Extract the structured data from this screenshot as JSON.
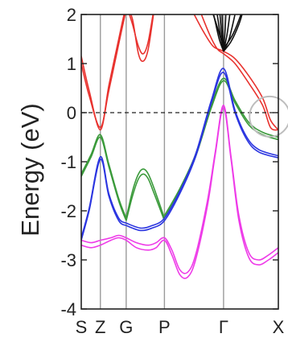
{
  "chart_data": {
    "type": "line",
    "title": "",
    "ylabel": "Energy (eV)",
    "xlabel": "",
    "ylim": [
      -4,
      2
    ],
    "x_range": [
      0,
      100
    ],
    "yticks": [
      "2",
      "1",
      "0",
      "-1",
      "-2",
      "-3",
      "-4"
    ],
    "ytick_values": [
      2,
      1,
      0,
      -1,
      -2,
      -3,
      -4
    ],
    "kpoints": [
      {
        "label": "S",
        "x": 0
      },
      {
        "label": "Z",
        "x": 9.7
      },
      {
        "label": "G",
        "x": 22.8
      },
      {
        "label": "P",
        "x": 42.2
      },
      {
        "label": "Γ",
        "x": 72.2
      },
      {
        "label": "X",
        "x": 100
      }
    ],
    "fermi_level": 0,
    "annotation": {
      "type": "circle",
      "x": 95.6,
      "y": -0.08,
      "note": "gray highlight circle"
    },
    "colors": {
      "red": "#e8322e",
      "green": "#3a9a3a",
      "blue": "#2b35e0",
      "magenta": "#ee3be8",
      "black": "#111111",
      "axis": "#222222",
      "kline": "#9a9a9a"
    },
    "series": [
      {
        "color": "red",
        "points": [
          [
            0,
            1.15
          ],
          [
            4,
            0.45
          ],
          [
            9.7,
            -0.35
          ],
          [
            14,
            0.55
          ],
          [
            19,
            1.5
          ],
          [
            22.8,
            2.2
          ]
        ]
      },
      {
        "color": "red",
        "points": [
          [
            0,
            1.0
          ],
          [
            4,
            0.35
          ],
          [
            9.7,
            -0.3
          ],
          [
            14,
            0.45
          ],
          [
            19,
            1.4
          ],
          [
            22.8,
            2.1
          ]
        ]
      },
      {
        "color": "red",
        "points": [
          [
            22.8,
            2.2
          ],
          [
            26,
            1.9
          ],
          [
            29,
            1.2
          ],
          [
            31.5,
            1.05
          ],
          [
            34,
            1.3
          ],
          [
            37,
            2.1
          ]
        ]
      },
      {
        "color": "red",
        "points": [
          [
            22.8,
            2.2
          ],
          [
            26,
            1.8
          ],
          [
            29,
            1.35
          ],
          [
            31.5,
            1.2
          ],
          [
            34,
            1.45
          ],
          [
            37,
            2.15
          ]
        ]
      },
      {
        "color": "red",
        "points": [
          [
            56,
            2.1
          ],
          [
            62,
            1.65
          ],
          [
            67,
            1.35
          ],
          [
            72.2,
            1.25
          ],
          [
            78,
            1.1
          ],
          [
            85,
            0.75
          ],
          [
            92,
            0.3
          ],
          [
            96,
            -0.15
          ],
          [
            100,
            -0.35
          ]
        ]
      },
      {
        "color": "red",
        "points": [
          [
            60,
            2.1
          ],
          [
            65,
            1.6
          ],
          [
            69,
            1.3
          ],
          [
            72.2,
            1.2
          ],
          [
            78,
            1.0
          ],
          [
            85,
            0.6
          ],
          [
            92,
            0.15
          ],
          [
            96,
            -0.3
          ],
          [
            100,
            -0.35
          ]
        ]
      },
      {
        "color": "green",
        "points": [
          [
            0,
            -1.3
          ],
          [
            5,
            -0.9
          ],
          [
            9.7,
            -0.5
          ],
          [
            14,
            -1.1
          ],
          [
            19,
            -1.8
          ],
          [
            22.8,
            -2.2
          ]
        ]
      },
      {
        "color": "green",
        "points": [
          [
            0,
            -1.25
          ],
          [
            5,
            -0.85
          ],
          [
            9.7,
            -0.45
          ],
          [
            14,
            -1.05
          ],
          [
            19,
            -1.75
          ],
          [
            22.8,
            -2.15
          ]
        ]
      },
      {
        "color": "green",
        "points": [
          [
            22.8,
            -2.2
          ],
          [
            26,
            -1.7
          ],
          [
            29,
            -1.35
          ],
          [
            31.5,
            -1.25
          ],
          [
            34,
            -1.35
          ],
          [
            37,
            -1.65
          ],
          [
            42.2,
            -2.2
          ]
        ]
      },
      {
        "color": "green",
        "points": [
          [
            22.8,
            -2.15
          ],
          [
            26,
            -1.6
          ],
          [
            29,
            -1.25
          ],
          [
            31.5,
            -1.15
          ],
          [
            34,
            -1.25
          ],
          [
            37,
            -1.55
          ],
          [
            42.2,
            -2.15
          ]
        ]
      },
      {
        "color": "green",
        "points": [
          [
            42.2,
            -2.15
          ],
          [
            50,
            -1.6
          ],
          [
            58,
            -0.9
          ],
          [
            66,
            0.1
          ],
          [
            72.2,
            0.65
          ],
          [
            78,
            0.2
          ],
          [
            85,
            -0.25
          ],
          [
            92,
            -0.45
          ],
          [
            100,
            -0.55
          ]
        ]
      },
      {
        "color": "green",
        "points": [
          [
            42.2,
            -2.1
          ],
          [
            50,
            -1.55
          ],
          [
            58,
            -0.85
          ],
          [
            66,
            0.15
          ],
          [
            72.2,
            0.7
          ],
          [
            78,
            0.25
          ],
          [
            85,
            -0.2
          ],
          [
            92,
            -0.4
          ],
          [
            100,
            -0.5
          ]
        ]
      },
      {
        "color": "blue",
        "points": [
          [
            0,
            -2.6
          ],
          [
            4,
            -2.0
          ],
          [
            9.7,
            -0.95
          ],
          [
            14,
            -1.7
          ],
          [
            19,
            -2.2
          ],
          [
            22.8,
            -2.3
          ]
        ]
      },
      {
        "color": "blue",
        "points": [
          [
            0,
            -2.55
          ],
          [
            4,
            -1.95
          ],
          [
            9.7,
            -0.9
          ],
          [
            14,
            -1.65
          ],
          [
            19,
            -2.15
          ],
          [
            22.8,
            -2.25
          ]
        ]
      },
      {
        "color": "blue",
        "points": [
          [
            22.8,
            -2.3
          ],
          [
            30,
            -2.4
          ],
          [
            36,
            -2.35
          ],
          [
            42.2,
            -2.2
          ],
          [
            50,
            -1.65
          ],
          [
            58,
            -0.9
          ],
          [
            66,
            0.2
          ],
          [
            72.2,
            0.82
          ],
          [
            78,
            0.0
          ],
          [
            84,
            -0.55
          ],
          [
            90,
            -0.8
          ],
          [
            100,
            -0.92
          ]
        ]
      },
      {
        "color": "blue",
        "points": [
          [
            22.8,
            -2.25
          ],
          [
            30,
            -2.35
          ],
          [
            36,
            -2.3
          ],
          [
            42.2,
            -2.15
          ],
          [
            50,
            -1.6
          ],
          [
            58,
            -0.85
          ],
          [
            66,
            0.25
          ],
          [
            72.2,
            0.9
          ],
          [
            78,
            0.05
          ],
          [
            84,
            -0.5
          ],
          [
            90,
            -0.75
          ],
          [
            100,
            -0.88
          ]
        ]
      },
      {
        "color": "magenta",
        "points": [
          [
            0,
            -2.6
          ],
          [
            5,
            -2.65
          ],
          [
            9.7,
            -2.6
          ],
          [
            15,
            -2.55
          ],
          [
            19,
            -2.5
          ],
          [
            22.8,
            -2.55
          ],
          [
            28,
            -2.65
          ],
          [
            34,
            -2.7
          ],
          [
            38,
            -2.65
          ],
          [
            42.2,
            -2.55
          ],
          [
            46,
            -2.8
          ],
          [
            50,
            -3.2
          ],
          [
            54,
            -3.25
          ],
          [
            58,
            -2.9
          ],
          [
            64,
            -1.8
          ],
          [
            68,
            -0.8
          ],
          [
            72.2,
            0.15
          ],
          [
            76,
            -0.9
          ],
          [
            80,
            -2.1
          ],
          [
            85,
            -2.85
          ],
          [
            90,
            -3.0
          ],
          [
            95,
            -2.9
          ],
          [
            100,
            -2.75
          ]
        ]
      },
      {
        "color": "magenta",
        "points": [
          [
            0,
            -2.7
          ],
          [
            5,
            -2.75
          ],
          [
            9.7,
            -2.7
          ],
          [
            15,
            -2.6
          ],
          [
            19,
            -2.55
          ],
          [
            22.8,
            -2.6
          ],
          [
            28,
            -2.75
          ],
          [
            34,
            -2.8
          ],
          [
            38,
            -2.75
          ],
          [
            42.2,
            -2.6
          ],
          [
            46,
            -2.9
          ],
          [
            50,
            -3.3
          ],
          [
            54,
            -3.35
          ],
          [
            58,
            -3.0
          ],
          [
            64,
            -1.9
          ],
          [
            68,
            -0.85
          ],
          [
            72.2,
            0.1
          ],
          [
            76,
            -0.95
          ],
          [
            80,
            -2.2
          ],
          [
            85,
            -2.95
          ],
          [
            90,
            -3.1
          ],
          [
            95,
            -3.0
          ],
          [
            100,
            -2.85
          ]
        ]
      },
      {
        "color": "black",
        "points": [
          [
            72.2,
            1.25
          ],
          [
            70,
            1.5
          ],
          [
            68,
            1.85
          ],
          [
            66,
            2.2
          ]
        ]
      },
      {
        "color": "black",
        "points": [
          [
            72.2,
            1.25
          ],
          [
            70.5,
            1.6
          ],
          [
            69,
            2.0
          ],
          [
            68,
            2.2
          ]
        ]
      },
      {
        "color": "black",
        "points": [
          [
            72.2,
            1.25
          ],
          [
            71,
            1.7
          ],
          [
            70,
            2.2
          ]
        ]
      },
      {
        "color": "black",
        "points": [
          [
            72.2,
            1.25
          ],
          [
            71.6,
            1.8
          ],
          [
            71.3,
            2.2
          ]
        ]
      },
      {
        "color": "black",
        "points": [
          [
            72.2,
            1.25
          ],
          [
            73,
            1.7
          ],
          [
            73.5,
            2.2
          ]
        ]
      },
      {
        "color": "black",
        "points": [
          [
            72.2,
            1.25
          ],
          [
            74,
            1.6
          ],
          [
            76,
            2.2
          ]
        ]
      },
      {
        "color": "black",
        "points": [
          [
            72.2,
            1.25
          ],
          [
            75,
            1.5
          ],
          [
            78,
            2.0
          ],
          [
            79,
            2.2
          ]
        ]
      },
      {
        "color": "black",
        "points": [
          [
            72.2,
            1.25
          ],
          [
            76,
            1.45
          ],
          [
            80,
            1.8
          ],
          [
            83,
            2.2
          ]
        ]
      },
      {
        "color": "black",
        "points": [
          [
            72.2,
            1.3
          ],
          [
            69,
            1.75
          ],
          [
            66,
            2.1
          ],
          [
            64,
            2.2
          ]
        ]
      },
      {
        "color": "black",
        "points": [
          [
            72.2,
            1.3
          ],
          [
            77,
            1.6
          ],
          [
            81,
            2.0
          ],
          [
            82,
            2.2
          ]
        ]
      }
    ]
  }
}
